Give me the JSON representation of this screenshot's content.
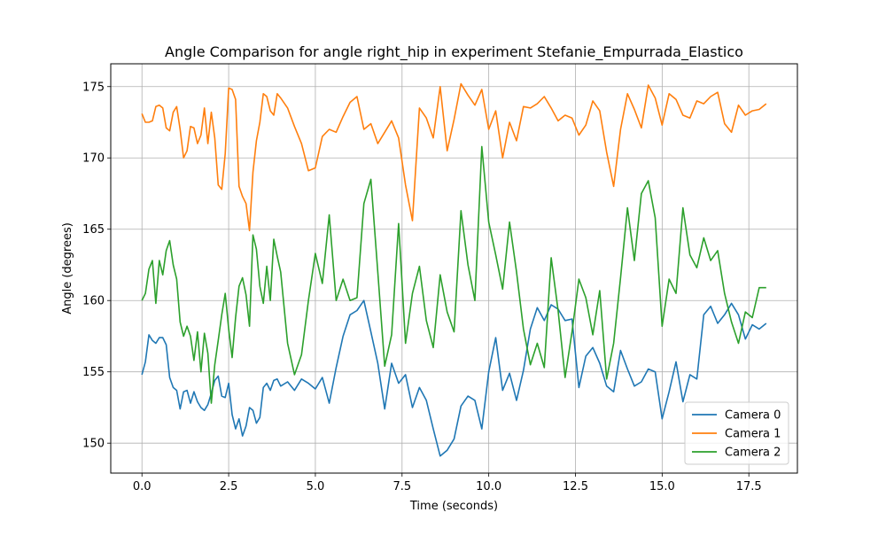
{
  "chart_data": {
    "type": "line",
    "title": "Angle Comparison for angle right_hip in experiment Stefanie_Empurrada_Elastico",
    "xlabel": "Time (seconds)",
    "ylabel": "Angle (degrees)",
    "xlim": [
      -0.9,
      18.9
    ],
    "ylim": [
      147.9,
      176.6
    ],
    "xticks": [
      0.0,
      2.5,
      5.0,
      7.5,
      10.0,
      12.5,
      15.0,
      17.5
    ],
    "xtick_labels": [
      "0.0",
      "2.5",
      "5.0",
      "7.5",
      "10.0",
      "12.5",
      "15.0",
      "17.5"
    ],
    "yticks": [
      150,
      155,
      160,
      165,
      170,
      175
    ],
    "ytick_labels": [
      "150",
      "155",
      "160",
      "165",
      "170",
      "175"
    ],
    "grid": true,
    "legend_position": "lower-right",
    "series": [
      {
        "name": "Camera 0",
        "color": "#1f77b4",
        "x": [
          0.0,
          0.1,
          0.2,
          0.3,
          0.4,
          0.5,
          0.6,
          0.7,
          0.8,
          0.9,
          1.0,
          1.1,
          1.2,
          1.3,
          1.4,
          1.5,
          1.6,
          1.7,
          1.8,
          1.9,
          2.0,
          2.1,
          2.2,
          2.3,
          2.4,
          2.5,
          2.6,
          2.7,
          2.8,
          2.9,
          3.0,
          3.1,
          3.2,
          3.3,
          3.4,
          3.5,
          3.6,
          3.7,
          3.8,
          3.9,
          4.0,
          4.2,
          4.4,
          4.6,
          4.8,
          5.0,
          5.2,
          5.4,
          5.6,
          5.8,
          6.0,
          6.2,
          6.4,
          6.6,
          6.8,
          7.0,
          7.2,
          7.4,
          7.6,
          7.8,
          8.0,
          8.2,
          8.4,
          8.6,
          8.8,
          9.0,
          9.2,
          9.4,
          9.6,
          9.8,
          10.0,
          10.2,
          10.4,
          10.6,
          10.8,
          11.0,
          11.2,
          11.4,
          11.6,
          11.8,
          12.0,
          12.2,
          12.4,
          12.6,
          12.8,
          13.0,
          13.2,
          13.4,
          13.6,
          13.8,
          14.0,
          14.2,
          14.4,
          14.6,
          14.8,
          15.0,
          15.2,
          15.4,
          15.6,
          15.8,
          16.0,
          16.2,
          16.4,
          16.6,
          16.8,
          17.0,
          17.2,
          17.4,
          17.6,
          17.8,
          18.0
        ],
        "y": [
          154.8,
          155.7,
          157.6,
          157.2,
          157.0,
          157.4,
          157.4,
          156.9,
          154.6,
          153.9,
          153.7,
          152.4,
          153.6,
          153.7,
          152.8,
          153.6,
          152.9,
          152.5,
          152.3,
          152.7,
          153.5,
          154.4,
          154.7,
          153.3,
          153.2,
          154.2,
          152.0,
          151.0,
          151.7,
          150.5,
          151.2,
          152.5,
          152.3,
          151.4,
          151.8,
          153.9,
          154.2,
          153.7,
          154.4,
          154.5,
          154.0,
          154.3,
          153.7,
          154.5,
          154.2,
          153.8,
          154.6,
          152.8,
          155.3,
          157.5,
          159.0,
          159.3,
          160.0,
          157.8,
          155.6,
          152.4,
          155.6,
          154.2,
          154.8,
          152.5,
          153.9,
          153.0,
          151.0,
          149.1,
          149.5,
          150.3,
          152.6,
          153.3,
          153.0,
          151.0,
          155.0,
          157.4,
          153.7,
          154.9,
          153.0,
          155.1,
          158.0,
          159.5,
          158.6,
          159.7,
          159.4,
          158.6,
          158.7,
          153.9,
          156.1,
          156.7,
          155.6,
          154.0,
          153.6,
          156.5,
          155.2,
          154.0,
          154.3,
          155.2,
          155.0,
          151.7,
          153.6,
          155.7,
          152.9,
          154.8,
          154.5,
          159.0,
          159.6,
          158.4,
          159.0,
          159.8,
          159.0,
          157.3,
          158.3,
          158.0,
          158.4
        ]
      },
      {
        "name": "Camera 1",
        "color": "#ff7f0e",
        "x": [
          0.0,
          0.1,
          0.2,
          0.3,
          0.4,
          0.5,
          0.6,
          0.7,
          0.8,
          0.9,
          1.0,
          1.1,
          1.2,
          1.3,
          1.4,
          1.5,
          1.6,
          1.7,
          1.8,
          1.9,
          2.0,
          2.1,
          2.2,
          2.3,
          2.4,
          2.5,
          2.6,
          2.7,
          2.8,
          2.9,
          3.0,
          3.1,
          3.2,
          3.3,
          3.4,
          3.5,
          3.6,
          3.7,
          3.8,
          3.9,
          4.0,
          4.2,
          4.4,
          4.6,
          4.8,
          5.0,
          5.2,
          5.4,
          5.6,
          5.8,
          6.0,
          6.2,
          6.4,
          6.6,
          6.8,
          7.0,
          7.2,
          7.4,
          7.6,
          7.8,
          8.0,
          8.2,
          8.4,
          8.6,
          8.8,
          9.0,
          9.2,
          9.4,
          9.6,
          9.8,
          10.0,
          10.2,
          10.4,
          10.6,
          10.8,
          11.0,
          11.2,
          11.4,
          11.6,
          11.8,
          12.0,
          12.2,
          12.4,
          12.6,
          12.8,
          13.0,
          13.2,
          13.4,
          13.6,
          13.8,
          14.0,
          14.2,
          14.4,
          14.6,
          14.8,
          15.0,
          15.2,
          15.4,
          15.6,
          15.8,
          16.0,
          16.2,
          16.4,
          16.6,
          16.8,
          17.0,
          17.2,
          17.4,
          17.6,
          17.8,
          18.0
        ],
        "y": [
          173.1,
          172.5,
          172.5,
          172.6,
          173.6,
          173.7,
          173.5,
          172.1,
          171.9,
          173.2,
          173.6,
          172.0,
          170.0,
          170.5,
          172.2,
          172.1,
          171.0,
          171.6,
          173.5,
          171.0,
          173.2,
          171.4,
          168.1,
          167.8,
          170.3,
          174.9,
          174.8,
          174.1,
          168.0,
          167.3,
          166.8,
          164.9,
          169.0,
          171.2,
          172.5,
          174.5,
          174.3,
          173.3,
          173.0,
          174.5,
          174.2,
          173.5,
          172.2,
          171.0,
          169.1,
          169.3,
          171.5,
          172.0,
          171.8,
          172.9,
          173.9,
          174.3,
          172.0,
          172.4,
          171.0,
          171.8,
          172.6,
          171.4,
          168.1,
          165.6,
          173.5,
          172.8,
          171.4,
          175.0,
          170.5,
          172.7,
          175.2,
          174.4,
          173.7,
          174.8,
          172.0,
          173.3,
          170.0,
          172.5,
          171.2,
          173.6,
          173.5,
          173.8,
          174.3,
          173.5,
          172.6,
          173.0,
          172.8,
          171.6,
          172.3,
          174.0,
          173.3,
          170.4,
          168.0,
          172.0,
          174.5,
          173.4,
          172.1,
          175.1,
          174.2,
          172.3,
          174.5,
          174.1,
          173.0,
          172.8,
          174.0,
          173.8,
          174.3,
          174.6,
          172.4,
          171.8,
          173.7,
          173.0,
          173.3,
          173.4,
          173.8
        ]
      },
      {
        "name": "Camera 2",
        "color": "#2ca02c",
        "x": [
          0.0,
          0.1,
          0.2,
          0.3,
          0.4,
          0.5,
          0.6,
          0.7,
          0.8,
          0.9,
          1.0,
          1.1,
          1.2,
          1.3,
          1.4,
          1.5,
          1.6,
          1.7,
          1.8,
          1.9,
          2.0,
          2.1,
          2.2,
          2.3,
          2.4,
          2.5,
          2.6,
          2.7,
          2.8,
          2.9,
          3.0,
          3.1,
          3.2,
          3.3,
          3.4,
          3.5,
          3.6,
          3.7,
          3.8,
          3.9,
          4.0,
          4.2,
          4.4,
          4.6,
          4.8,
          5.0,
          5.2,
          5.4,
          5.6,
          5.8,
          6.0,
          6.2,
          6.4,
          6.6,
          6.8,
          7.0,
          7.2,
          7.4,
          7.6,
          7.8,
          8.0,
          8.2,
          8.4,
          8.6,
          8.8,
          9.0,
          9.2,
          9.4,
          9.6,
          9.8,
          10.0,
          10.2,
          10.4,
          10.6,
          10.8,
          11.0,
          11.2,
          11.4,
          11.6,
          11.8,
          12.0,
          12.2,
          12.4,
          12.6,
          12.8,
          13.0,
          13.2,
          13.4,
          13.6,
          13.8,
          14.0,
          14.2,
          14.4,
          14.6,
          14.8,
          15.0,
          15.2,
          15.4,
          15.6,
          15.8,
          16.0,
          16.2,
          16.4,
          16.6,
          16.8,
          17.0,
          17.2,
          17.4,
          17.6,
          17.8,
          18.0
        ],
        "y": [
          160.0,
          160.5,
          162.2,
          162.8,
          159.8,
          162.8,
          161.8,
          163.5,
          164.2,
          162.5,
          161.5,
          158.5,
          157.5,
          158.2,
          157.5,
          155.8,
          157.8,
          155.0,
          157.7,
          156.3,
          152.8,
          155.5,
          157.2,
          159.0,
          160.5,
          158.0,
          156.0,
          158.8,
          161.0,
          161.6,
          160.4,
          158.2,
          164.6,
          163.6,
          161.0,
          159.8,
          162.4,
          160.0,
          164.3,
          163.1,
          162.0,
          157.0,
          154.8,
          156.2,
          160.0,
          163.3,
          161.2,
          166.0,
          160.0,
          161.5,
          160.0,
          160.2,
          166.8,
          168.5,
          162.0,
          155.4,
          157.6,
          165.4,
          157.0,
          160.5,
          162.4,
          158.6,
          156.7,
          161.8,
          159.2,
          157.8,
          166.3,
          162.5,
          160.0,
          170.8,
          165.5,
          163.2,
          160.8,
          165.5,
          162.0,
          158.0,
          155.5,
          157.0,
          155.3,
          163.0,
          159.3,
          154.6,
          157.8,
          161.5,
          160.2,
          157.6,
          160.7,
          154.5,
          157.0,
          161.6,
          166.5,
          162.8,
          167.5,
          168.4,
          165.8,
          158.2,
          161.5,
          160.5,
          166.5,
          163.2,
          162.3,
          164.4,
          162.8,
          163.5,
          160.5,
          158.5,
          157.0,
          159.2,
          158.8,
          160.9,
          160.9
        ]
      }
    ]
  }
}
